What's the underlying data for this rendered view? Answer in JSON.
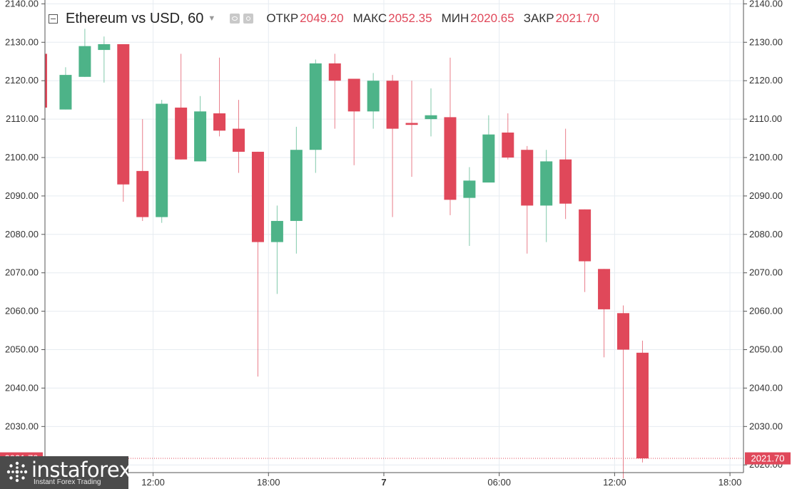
{
  "header": {
    "title": "Ethereum vs USD, 60",
    "open_label": "ОТКР",
    "open_value": "2049.20",
    "high_label": "МАКС",
    "high_value": "2052.35",
    "low_label": "МИН",
    "low_value": "2020.65",
    "close_label": "ЗАКР",
    "close_value": "2021.70"
  },
  "watermark": {
    "name": "instaforex",
    "tagline": "Instant Forex Trading"
  },
  "chart_data": {
    "type": "candlestick",
    "title": "Ethereum vs USD, 60",
    "ylim": [
      2018,
      2141
    ],
    "y_ticks": [
      2020,
      2030,
      2040,
      2050,
      2060,
      2070,
      2080,
      2090,
      2100,
      2110,
      2120,
      2130,
      2140
    ],
    "x_ticks": [
      {
        "label": "12:00",
        "index": 5.55
      },
      {
        "label": "18:00",
        "index": 11.55
      },
      {
        "label": "7",
        "index": 17.55
      },
      {
        "label": "06:00",
        "index": 23.55
      },
      {
        "label": "12:00",
        "index": 29.55
      },
      {
        "label": "18:00",
        "index": 35.55
      }
    ],
    "last_price": 2021.7,
    "last_price_label": "2021.70",
    "grid": true,
    "colors": {
      "up": "#4db388",
      "down": "#e0485a",
      "grid": "#e6ecf1"
    },
    "candles": [
      {
        "o": 2127.0,
        "h": 2127.0,
        "l": 2113.0,
        "c": 2113.0
      },
      {
        "o": 2112.5,
        "h": 2123.5,
        "l": 2112.5,
        "c": 2121.5
      },
      {
        "o": 2121.0,
        "h": 2133.5,
        "l": 2121.0,
        "c": 2129.0
      },
      {
        "o": 2128.0,
        "h": 2131.5,
        "l": 2119.5,
        "c": 2129.5
      },
      {
        "o": 2129.5,
        "h": 2129.5,
        "l": 2088.5,
        "c": 2093.0
      },
      {
        "o": 2096.5,
        "h": 2110.0,
        "l": 2083.5,
        "c": 2084.5
      },
      {
        "o": 2084.5,
        "h": 2115.0,
        "l": 2083.0,
        "c": 2114.0
      },
      {
        "o": 2113.0,
        "h": 2127.0,
        "l": 2099.5,
        "c": 2099.5
      },
      {
        "o": 2099.0,
        "h": 2116.0,
        "l": 2099.0,
        "c": 2112.0
      },
      {
        "o": 2111.5,
        "h": 2126.0,
        "l": 2105.5,
        "c": 2107.0
      },
      {
        "o": 2107.5,
        "h": 2115.0,
        "l": 2096.0,
        "c": 2101.5
      },
      {
        "o": 2101.5,
        "h": 2101.5,
        "l": 2043.0,
        "c": 2078.0
      },
      {
        "o": 2078.0,
        "h": 2087.5,
        "l": 2064.5,
        "c": 2083.5
      },
      {
        "o": 2083.5,
        "h": 2108.0,
        "l": 2075.0,
        "c": 2102.0
      },
      {
        "o": 2102.0,
        "h": 2125.5,
        "l": 2096.0,
        "c": 2124.5
      },
      {
        "o": 2124.5,
        "h": 2127.0,
        "l": 2107.5,
        "c": 2120.0
      },
      {
        "o": 2120.5,
        "h": 2120.5,
        "l": 2098.0,
        "c": 2112.0
      },
      {
        "o": 2112.0,
        "h": 2122.0,
        "l": 2107.5,
        "c": 2120.0
      },
      {
        "o": 2120.0,
        "h": 2121.5,
        "l": 2084.5,
        "c": 2107.5
      },
      {
        "o": 2109.0,
        "h": 2120.0,
        "l": 2095.0,
        "c": 2108.5
      },
      {
        "o": 2110.0,
        "h": 2118.0,
        "l": 2105.5,
        "c": 2111.0
      },
      {
        "o": 2110.5,
        "h": 2126.0,
        "l": 2085.0,
        "c": 2089.0
      },
      {
        "o": 2089.5,
        "h": 2097.5,
        "l": 2077.0,
        "c": 2094.0
      },
      {
        "o": 2093.5,
        "h": 2111.0,
        "l": 2093.5,
        "c": 2106.0
      },
      {
        "o": 2106.5,
        "h": 2111.5,
        "l": 2099.5,
        "c": 2100.0
      },
      {
        "o": 2102.0,
        "h": 2103.0,
        "l": 2075.0,
        "c": 2087.5
      },
      {
        "o": 2087.5,
        "h": 2102.0,
        "l": 2078.0,
        "c": 2099.0
      },
      {
        "o": 2099.5,
        "h": 2107.5,
        "l": 2084.0,
        "c": 2088.0
      },
      {
        "o": 2086.5,
        "h": 2086.5,
        "l": 2065.0,
        "c": 2073.0
      },
      {
        "o": 2071.0,
        "h": 2071.0,
        "l": 2048.0,
        "c": 2060.5
      },
      {
        "o": 2059.5,
        "h": 2061.5,
        "l": 2016.5,
        "c": 2050.0
      },
      {
        "o": 2049.2,
        "h": 2052.35,
        "l": 2020.65,
        "c": 2021.7
      }
    ]
  }
}
